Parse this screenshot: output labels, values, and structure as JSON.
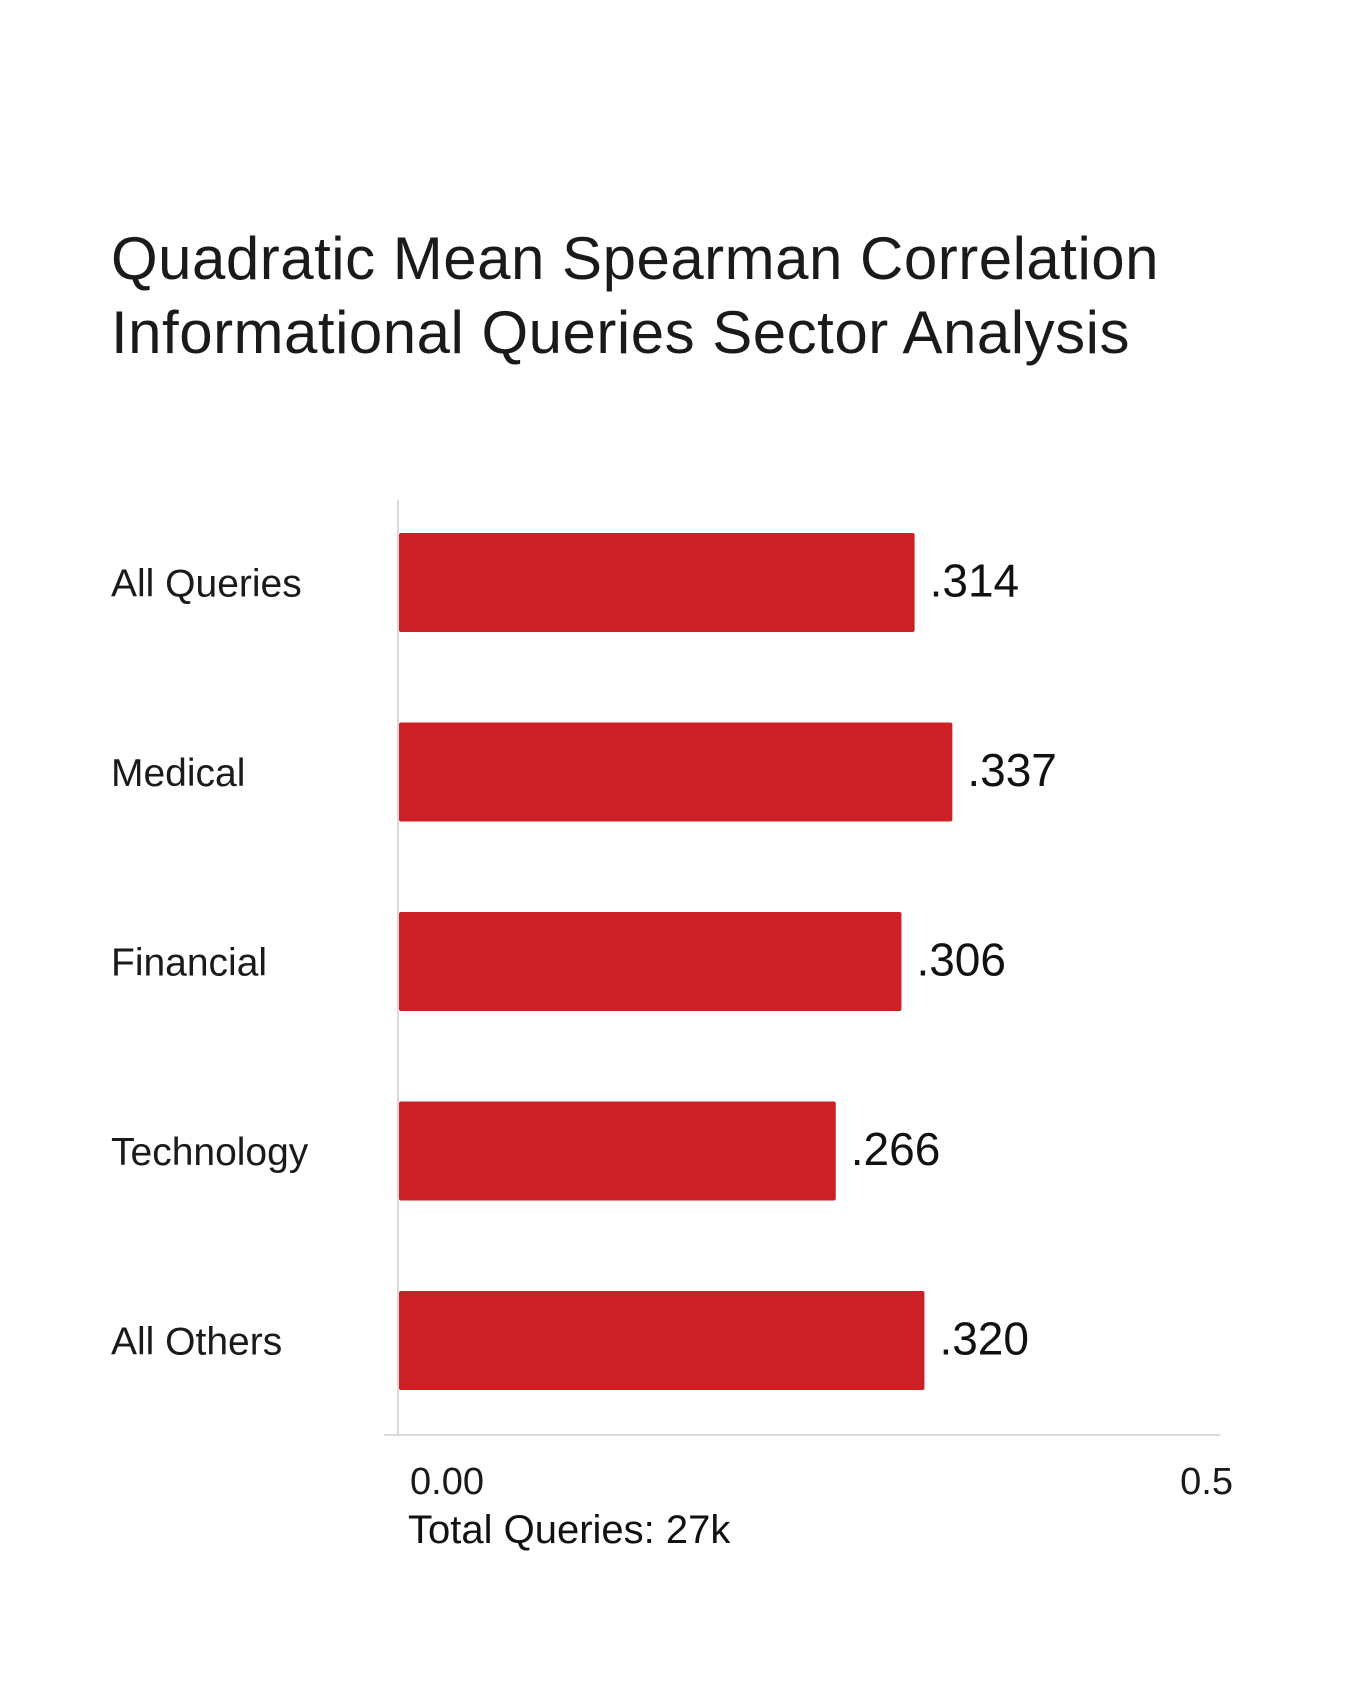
{
  "chart_data": {
    "type": "bar",
    "orientation": "horizontal",
    "title_lines": [
      "Quadratic Mean Spearman Correlation",
      "Informational Queries Sector Analysis"
    ],
    "categories": [
      "All Queries",
      "Medical",
      "Financial",
      "Technology",
      "All Others"
    ],
    "values": [
      0.314,
      0.337,
      0.306,
      0.266,
      0.32
    ],
    "value_labels": [
      ".314",
      ".337",
      ".306",
      ".266",
      ".320"
    ],
    "xlim": [
      0,
      0.5
    ],
    "x_tick_labels": [
      "0.00",
      "0.5"
    ],
    "xlabel": "",
    "ylabel": "",
    "note": "Total Queries: 27k",
    "bar_color": "#cc2026",
    "axis_color": "#d9d9d9",
    "grid": false,
    "legend": "none"
  }
}
